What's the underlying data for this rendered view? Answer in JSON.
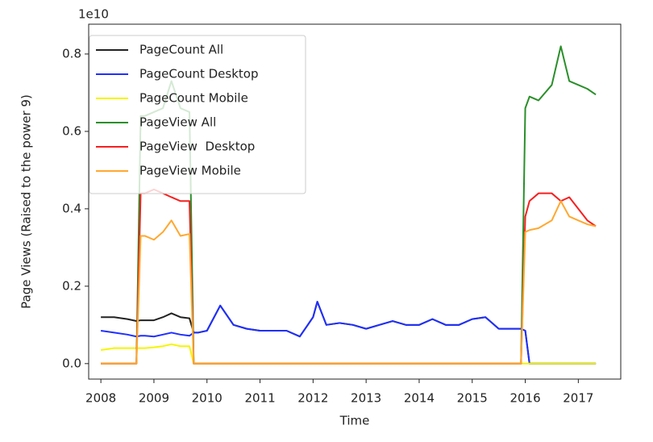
{
  "chart_data": {
    "type": "line",
    "x_label": "Time",
    "y_label": "Page Views (Raised to the power 9)",
    "offset_text": "1e10",
    "xlim": [
      2007.77,
      2017.8
    ],
    "ylim": [
      -0.04,
      0.877
    ],
    "xticks": [
      2008,
      2009,
      2010,
      2011,
      2012,
      2013,
      2014,
      2015,
      2016,
      2017
    ],
    "yticks": [
      {
        "value": 0,
        "label": "0.0"
      },
      {
        "value": 0.2,
        "label": "0.2"
      },
      {
        "value": 0.4,
        "label": "0.4"
      },
      {
        "value": 0.6,
        "label": "0.6"
      },
      {
        "value": 0.8,
        "label": "0.8"
      }
    ],
    "legend": "upper left",
    "x": [
      2008.0,
      2008.25,
      2008.5,
      2008.67,
      2008.75,
      2008.83,
      2009.0,
      2009.17,
      2009.33,
      2009.5,
      2009.67,
      2009.75,
      2009.83,
      2010.0,
      2010.25,
      2010.5,
      2010.75,
      2011.0,
      2011.25,
      2011.5,
      2011.75,
      2012.0,
      2012.08,
      2012.25,
      2012.5,
      2012.75,
      2013.0,
      2013.25,
      2013.5,
      2013.75,
      2014.0,
      2014.25,
      2014.5,
      2014.75,
      2015.0,
      2015.25,
      2015.5,
      2015.75,
      2015.92,
      2016.0,
      2016.08,
      2016.25,
      2016.5,
      2016.67,
      2016.83,
      2017.0,
      2017.17,
      2017.33
    ],
    "series": [
      {
        "name": "PageCount All",
        "color": "#222222",
        "values": [
          0.12,
          0.12,
          0.115,
          0.11,
          0.112,
          0.112,
          0.112,
          0.12,
          0.13,
          0.12,
          0.117,
          0.08,
          0.08,
          0.085,
          0.15,
          0.1,
          0.09,
          0.085,
          0.085,
          0.085,
          0.07,
          0.12,
          0.16,
          0.1,
          0.105,
          0.1,
          0.09,
          0.1,
          0.11,
          0.1,
          0.1,
          0.115,
          0.1,
          0.1,
          0.115,
          0.12,
          0.09,
          0.09,
          0.09,
          0.085,
          0,
          0,
          0,
          0,
          0,
          0,
          0,
          0
        ]
      },
      {
        "name": "PageCount Desktop",
        "color": "#1f2fff",
        "values": [
          0.085,
          0.08,
          0.075,
          0.07,
          0.072,
          0.072,
          0.07,
          0.075,
          0.08,
          0.075,
          0.072,
          0.08,
          0.08,
          0.085,
          0.15,
          0.1,
          0.09,
          0.085,
          0.085,
          0.085,
          0.07,
          0.12,
          0.16,
          0.1,
          0.105,
          0.1,
          0.09,
          0.1,
          0.11,
          0.1,
          0.1,
          0.115,
          0.1,
          0.1,
          0.115,
          0.12,
          0.09,
          0.09,
          0.09,
          0.085,
          0,
          0,
          0,
          0,
          0,
          0,
          0,
          0
        ]
      },
      {
        "name": "PageCount Mobile",
        "color": "#f5f500",
        "values": [
          0.035,
          0.04,
          0.04,
          0.04,
          0.04,
          0.04,
          0.042,
          0.045,
          0.05,
          0.045,
          0.045,
          0,
          0,
          0,
          0,
          0,
          0,
          0,
          0,
          0,
          0,
          0,
          0,
          0,
          0,
          0,
          0,
          0,
          0,
          0,
          0,
          0,
          0,
          0,
          0,
          0,
          0,
          0,
          0,
          0,
          0,
          0,
          0,
          0,
          0,
          0,
          0,
          0
        ]
      },
      {
        "name": "PageView All",
        "color": "#2a8f2a",
        "values": [
          0,
          0,
          0,
          0,
          0.64,
          0.64,
          0.65,
          0.66,
          0.73,
          0.66,
          0.65,
          0,
          0,
          0,
          0,
          0,
          0,
          0,
          0,
          0,
          0,
          0,
          0,
          0,
          0,
          0,
          0,
          0,
          0,
          0,
          0,
          0,
          0,
          0,
          0,
          0,
          0,
          0,
          0,
          0.66,
          0.69,
          0.68,
          0.72,
          0.82,
          0.73,
          0.72,
          0.71,
          0.695
        ]
      },
      {
        "name": "PageView  Desktop",
        "color": "#f52020",
        "values": [
          0,
          0,
          0,
          0,
          0.44,
          0.44,
          0.45,
          0.44,
          0.43,
          0.42,
          0.42,
          0,
          0,
          0,
          0,
          0,
          0,
          0,
          0,
          0,
          0,
          0,
          0,
          0,
          0,
          0,
          0,
          0,
          0,
          0,
          0,
          0,
          0,
          0,
          0,
          0,
          0,
          0,
          0,
          0.38,
          0.42,
          0.44,
          0.44,
          0.42,
          0.43,
          0.4,
          0.37,
          0.355
        ]
      },
      {
        "name": "PageView Mobile",
        "color": "#ffa830",
        "values": [
          0,
          0,
          0,
          0,
          0.33,
          0.33,
          0.32,
          0.34,
          0.37,
          0.33,
          0.335,
          0,
          0,
          0,
          0,
          0,
          0,
          0,
          0,
          0,
          0,
          0,
          0,
          0,
          0,
          0,
          0,
          0,
          0,
          0,
          0,
          0,
          0,
          0,
          0,
          0,
          0,
          0,
          0,
          0.34,
          0.345,
          0.35,
          0.37,
          0.42,
          0.38,
          0.37,
          0.36,
          0.355
        ]
      }
    ]
  }
}
